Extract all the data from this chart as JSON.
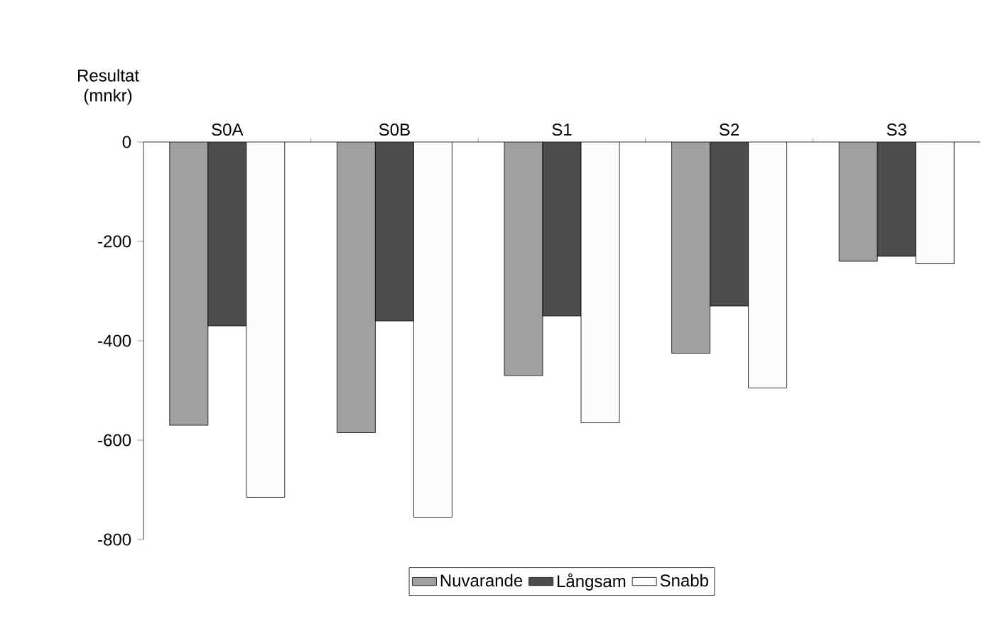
{
  "chart_data": {
    "type": "bar",
    "ylabel": "Resultat (mnkr)",
    "categories": [
      "S0A",
      "S0B",
      "S1",
      "S2",
      "S3"
    ],
    "series": [
      {
        "name": "Nuvarande",
        "color": "#a0a0a0",
        "values": [
          -570,
          -585,
          -470,
          -425,
          -240
        ]
      },
      {
        "name": "Långsam",
        "color": "#4d4d4d",
        "values": [
          -370,
          -360,
          -350,
          -330,
          -230
        ]
      },
      {
        "name": "Snabb",
        "color": "#fcfcfc",
        "values": [
          -715,
          -755,
          -565,
          -495,
          -245
        ]
      }
    ],
    "ylim": [
      -800,
      0
    ],
    "yticks": [
      0,
      -200,
      -400,
      -600,
      -800
    ],
    "grid": false,
    "legend": "bottom"
  }
}
